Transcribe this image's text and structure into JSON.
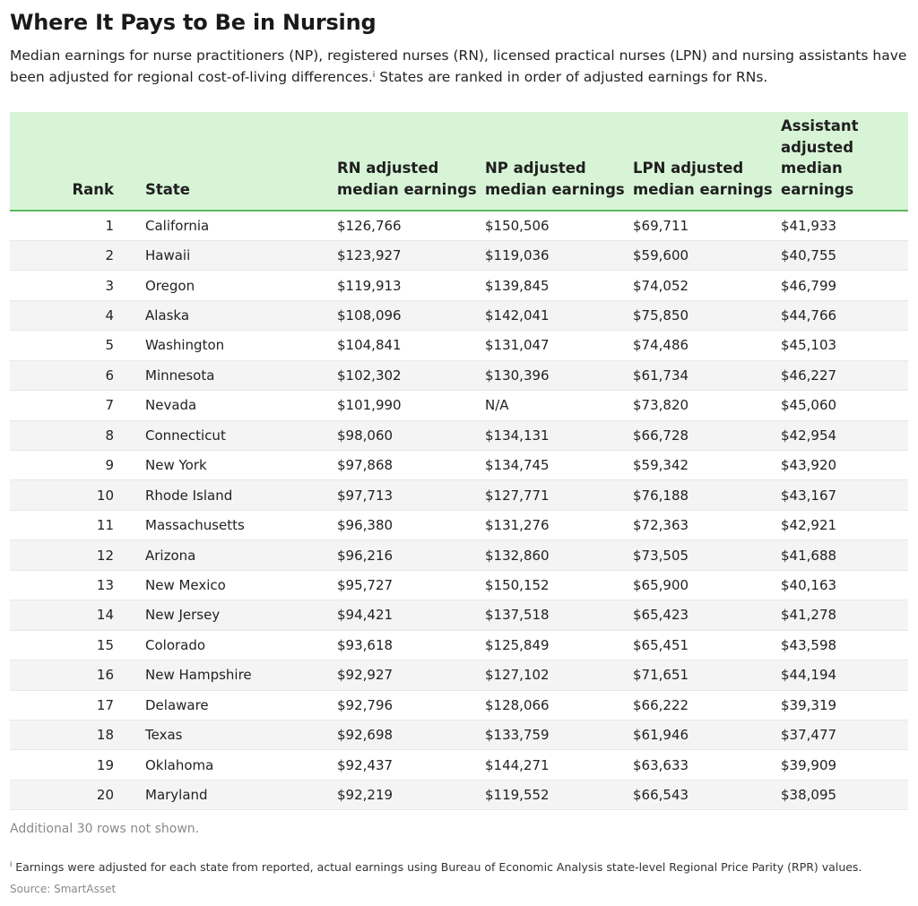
{
  "title": "Where It Pays to Be in Nursing",
  "subtitle": "Median earnings for nurse practitioners (NP), registered nurses (RN), licensed practical nurses (LPN) and nursing assistants have been adjusted for regional cost-of-living differences.",
  "subtitle_marker": "i",
  "subtitle_end": " States are ranked in order of adjusted earnings for RNs.",
  "colors": {
    "header_bg": "#d7f4d7",
    "header_rule": "#5cb85c",
    "zebra": "#f4f4f4"
  },
  "chart_data": {
    "type": "table",
    "columns": [
      "Rank",
      "State",
      "RN adjusted median earnings",
      "NP adjusted median earnings",
      "LPN adjusted median earnings",
      "Assistant adjusted median earnings"
    ],
    "rows": [
      [
        "1",
        "California",
        "$126,766",
        "$150,506",
        "$69,711",
        "$41,933"
      ],
      [
        "2",
        "Hawaii",
        "$123,927",
        "$119,036",
        "$59,600",
        "$40,755"
      ],
      [
        "3",
        "Oregon",
        "$119,913",
        "$139,845",
        "$74,052",
        "$46,799"
      ],
      [
        "4",
        "Alaska",
        "$108,096",
        "$142,041",
        "$75,850",
        "$44,766"
      ],
      [
        "5",
        "Washington",
        "$104,841",
        "$131,047",
        "$74,486",
        "$45,103"
      ],
      [
        "6",
        "Minnesota",
        "$102,302",
        "$130,396",
        "$61,734",
        "$46,227"
      ],
      [
        "7",
        "Nevada",
        "$101,990",
        "N/A",
        "$73,820",
        "$45,060"
      ],
      [
        "8",
        "Connecticut",
        "$98,060",
        "$134,131",
        "$66,728",
        "$42,954"
      ],
      [
        "9",
        "New York",
        "$97,868",
        "$134,745",
        "$59,342",
        "$43,920"
      ],
      [
        "10",
        "Rhode Island",
        "$97,713",
        "$127,771",
        "$76,188",
        "$43,167"
      ],
      [
        "11",
        "Massachusetts",
        "$96,380",
        "$131,276",
        "$72,363",
        "$42,921"
      ],
      [
        "12",
        "Arizona",
        "$96,216",
        "$132,860",
        "$73,505",
        "$41,688"
      ],
      [
        "13",
        "New Mexico",
        "$95,727",
        "$150,152",
        "$65,900",
        "$40,163"
      ],
      [
        "14",
        "New Jersey",
        "$94,421",
        "$137,518",
        "$65,423",
        "$41,278"
      ],
      [
        "15",
        "Colorado",
        "$93,618",
        "$125,849",
        "$65,451",
        "$43,598"
      ],
      [
        "16",
        "New Hampshire",
        "$92,927",
        "$127,102",
        "$71,651",
        "$44,194"
      ],
      [
        "17",
        "Delaware",
        "$92,796",
        "$128,066",
        "$66,222",
        "$39,319"
      ],
      [
        "18",
        "Texas",
        "$92,698",
        "$133,759",
        "$61,946",
        "$37,477"
      ],
      [
        "19",
        "Oklahoma",
        "$92,437",
        "$144,271",
        "$63,633",
        "$39,909"
      ],
      [
        "20",
        "Maryland",
        "$92,219",
        "$119,552",
        "$66,543",
        "$38,095"
      ]
    ]
  },
  "note": "Additional 30 rows not shown.",
  "footnote_marker": "i",
  "footnote": " Earnings were adjusted for each state from reported, actual earnings using Bureau of Economic Analysis state-level Regional Price Parity (RPR) values.",
  "source": "Source: SmartAsset"
}
